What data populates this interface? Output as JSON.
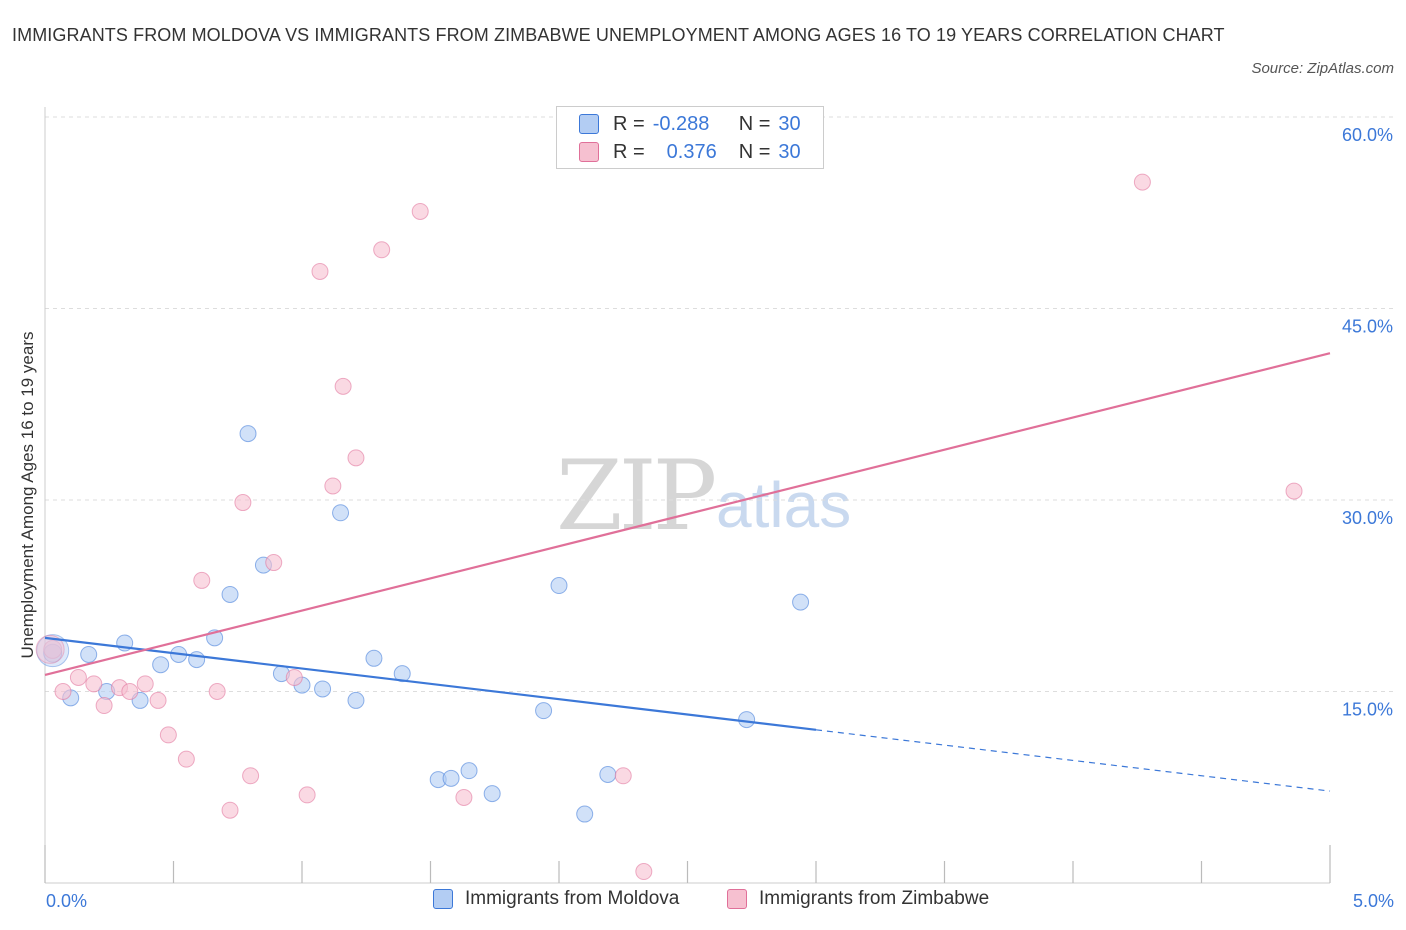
{
  "title": "IMMIGRANTS FROM MOLDOVA VS IMMIGRANTS FROM ZIMBABWE UNEMPLOYMENT AMONG AGES 16 TO 19 YEARS CORRELATION CHART",
  "source": "Source: ZipAtlas.com",
  "watermark": {
    "zip": "ZIP",
    "atlas": "atlas"
  },
  "legend": {
    "rows": [
      {
        "r_label": "R =",
        "r_value": "-0.288",
        "n_label": "N =",
        "n_value": "30"
      },
      {
        "r_label": "R =",
        "r_value": "0.376",
        "n_label": "N =",
        "n_value": "30"
      }
    ]
  },
  "x_tick_labels": {
    "left": "0.0%",
    "right": "5.0%"
  },
  "chart_data": {
    "type": "scatter",
    "title": "IMMIGRANTS FROM MOLDOVA VS IMMIGRANTS FROM ZIMBABWE UNEMPLOYMENT AMONG AGES 16 TO 19 YEARS CORRELATION CHART",
    "xlabel": "",
    "ylabel": "Unemployment Among Ages 16 to 19 years",
    "xlim": [
      0,
      5
    ],
    "ylim": [
      0,
      60
    ],
    "y_ticks": [
      15,
      30,
      45,
      60
    ],
    "y_tick_labels": [
      "15.0%",
      "30.0%",
      "45.0%",
      "60.0%"
    ],
    "grid": true,
    "legend_position": "bottom",
    "colors": {
      "moldova": "#3c78d8",
      "zimbabwe": "#e07099",
      "moldova_fill": "#b3cdf3",
      "zimbabwe_fill": "#f6c0d0"
    },
    "series": [
      {
        "name": "Immigrants from Moldova",
        "key": "moldova",
        "points": [
          [
            0.03,
            18.0
          ],
          [
            0.1,
            14.5
          ],
          [
            0.17,
            17.9
          ],
          [
            0.24,
            15.0
          ],
          [
            0.31,
            18.8
          ],
          [
            0.37,
            14.3
          ],
          [
            0.45,
            17.1
          ],
          [
            0.52,
            17.9
          ],
          [
            0.59,
            17.5
          ],
          [
            0.66,
            19.2
          ],
          [
            0.72,
            22.6
          ],
          [
            0.79,
            35.2
          ],
          [
            0.85,
            24.9
          ],
          [
            0.92,
            16.4
          ],
          [
            1.0,
            15.5
          ],
          [
            1.08,
            15.2
          ],
          [
            1.15,
            29.0
          ],
          [
            1.21,
            14.3
          ],
          [
            1.28,
            17.6
          ],
          [
            1.39,
            16.4
          ],
          [
            1.53,
            8.1
          ],
          [
            1.58,
            8.2
          ],
          [
            1.65,
            8.8
          ],
          [
            1.74,
            7.0
          ],
          [
            1.94,
            13.5
          ],
          [
            2.0,
            23.3
          ],
          [
            2.1,
            5.4
          ],
          [
            2.19,
            8.5
          ],
          [
            2.73,
            12.8
          ],
          [
            2.94,
            22.0
          ]
        ],
        "trend": {
          "x_start": 0,
          "y_start": 19.2,
          "x_solid_end": 3.0,
          "y_solid_end": 12.0,
          "x_end": 5.0,
          "y_end": 7.2
        }
      },
      {
        "name": "Immigrants from Zimbabwe",
        "key": "zimbabwe",
        "points": [
          [
            0.03,
            18.3
          ],
          [
            0.07,
            15.0
          ],
          [
            0.13,
            16.1
          ],
          [
            0.19,
            15.6
          ],
          [
            0.23,
            13.9
          ],
          [
            0.29,
            15.3
          ],
          [
            0.33,
            15.0
          ],
          [
            0.39,
            15.6
          ],
          [
            0.44,
            14.3
          ],
          [
            0.48,
            11.6
          ],
          [
            0.55,
            9.7
          ],
          [
            0.61,
            23.7
          ],
          [
            0.67,
            15.0
          ],
          [
            0.72,
            5.7
          ],
          [
            0.77,
            29.8
          ],
          [
            0.8,
            8.4
          ],
          [
            0.89,
            25.1
          ],
          [
            0.97,
            16.1
          ],
          [
            1.02,
            6.9
          ],
          [
            1.07,
            47.9
          ],
          [
            1.12,
            31.1
          ],
          [
            1.16,
            38.9
          ],
          [
            1.21,
            33.3
          ],
          [
            1.31,
            49.6
          ],
          [
            1.46,
            52.6
          ],
          [
            1.63,
            6.7
          ],
          [
            2.25,
            8.4
          ],
          [
            2.33,
            0.9
          ],
          [
            4.27,
            54.9
          ],
          [
            4.86,
            30.7
          ]
        ],
        "trend": {
          "x_start": 0,
          "y_start": 16.3,
          "x_end": 5.0,
          "y_end": 41.5
        }
      }
    ]
  }
}
